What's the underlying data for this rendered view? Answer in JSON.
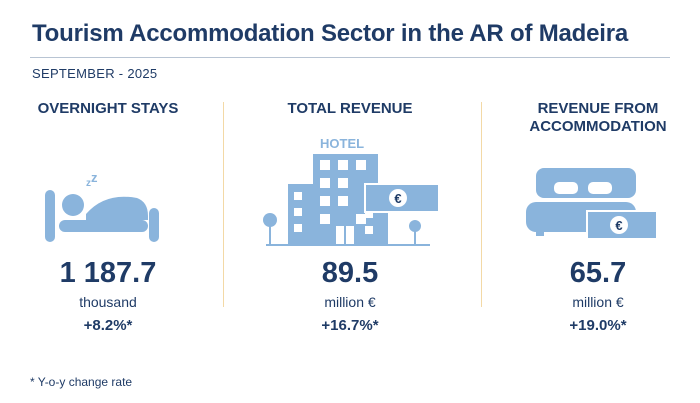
{
  "header": {
    "title": "Tourism Accommodation Sector in the AR of Madeira",
    "period": "SEPTEMBER - 2025"
  },
  "colors": {
    "primary": "#1f3b66",
    "icon": "#8ab4dc",
    "divider": "#f3d9a6"
  },
  "indicators": [
    {
      "label": "OVERNIGHT STAYS",
      "icon": "sleeping-person-in-bed-icon",
      "value": "1 187.7",
      "unit": "thousand",
      "change": "+8.2%*"
    },
    {
      "label": "TOTAL REVENUE",
      "icon": "hotel-building-with-euro-banknote-icon",
      "hotel_sign": "HOTEL",
      "currency_symbol": "€",
      "value": "89.5",
      "unit": "million €",
      "change": "+16.7%*"
    },
    {
      "label": "REVENUE FROM ACCOMMODATION",
      "icon": "double-bed-with-euro-banknote-icon",
      "currency_symbol": "€",
      "value": "65.7",
      "unit": "million €",
      "change": "+19.0%*"
    }
  ],
  "footnote": "* Y-o-y change rate"
}
